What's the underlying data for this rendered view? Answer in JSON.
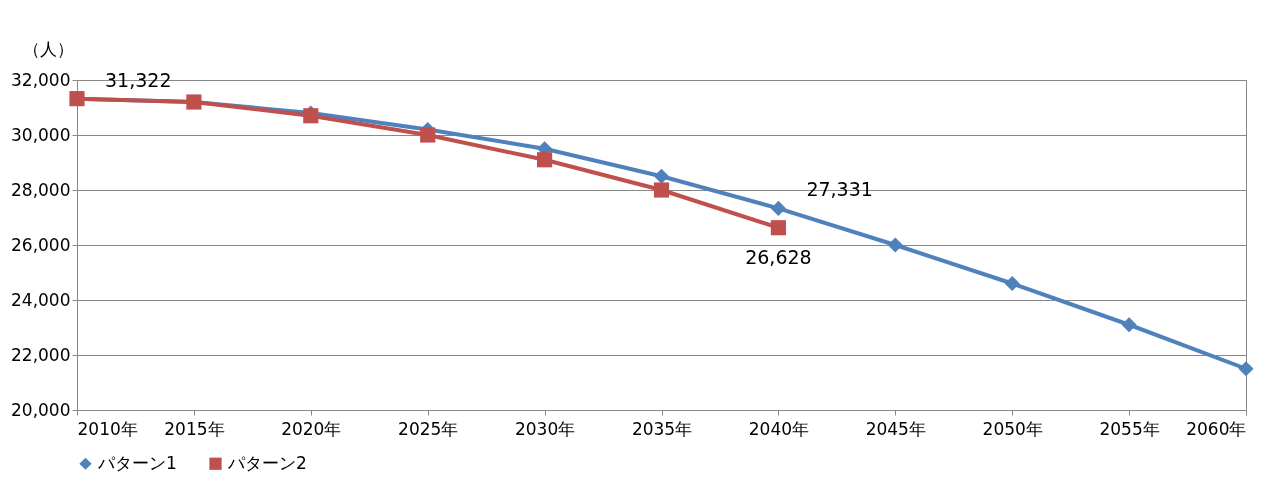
{
  "chart_data": {
    "type": "line",
    "ylabel": "（人）",
    "categories": [
      "2010年",
      "2015年",
      "2020年",
      "2025年",
      "2030年",
      "2035年",
      "2040年",
      "2045年",
      "2050年",
      "2055年",
      "2060年"
    ],
    "series": [
      {
        "name": "パターン1",
        "color": "#4f81bd",
        "marker": "diamond",
        "values": [
          31322,
          31200,
          30800,
          30200,
          29500,
          28500,
          27331,
          26000,
          24600,
          23100,
          21500
        ],
        "value_labels": [
          "31,322",
          null,
          null,
          null,
          null,
          null,
          "27,331",
          null,
          null,
          null,
          null
        ]
      },
      {
        "name": "パターン2",
        "color": "#c0504d",
        "marker": "square",
        "values": [
          31322,
          31200,
          30700,
          30000,
          29100,
          28000,
          26628,
          null,
          null,
          null,
          null
        ],
        "value_labels": [
          null,
          null,
          null,
          null,
          null,
          null,
          "26,628",
          null,
          null,
          null,
          null
        ]
      }
    ],
    "ylim": [
      20000,
      32000
    ],
    "yticks": [
      {
        "value": 20000,
        "label": "20,000"
      },
      {
        "value": 22000,
        "label": "22,000"
      },
      {
        "value": 24000,
        "label": "24,000"
      },
      {
        "value": 26000,
        "label": "26,000"
      },
      {
        "value": 28000,
        "label": "28,000"
      },
      {
        "value": 30000,
        "label": "30,000"
      },
      {
        "value": 32000,
        "label": "32,000"
      }
    ],
    "grid": "y",
    "legend": "bottom",
    "line_style": "solid"
  }
}
